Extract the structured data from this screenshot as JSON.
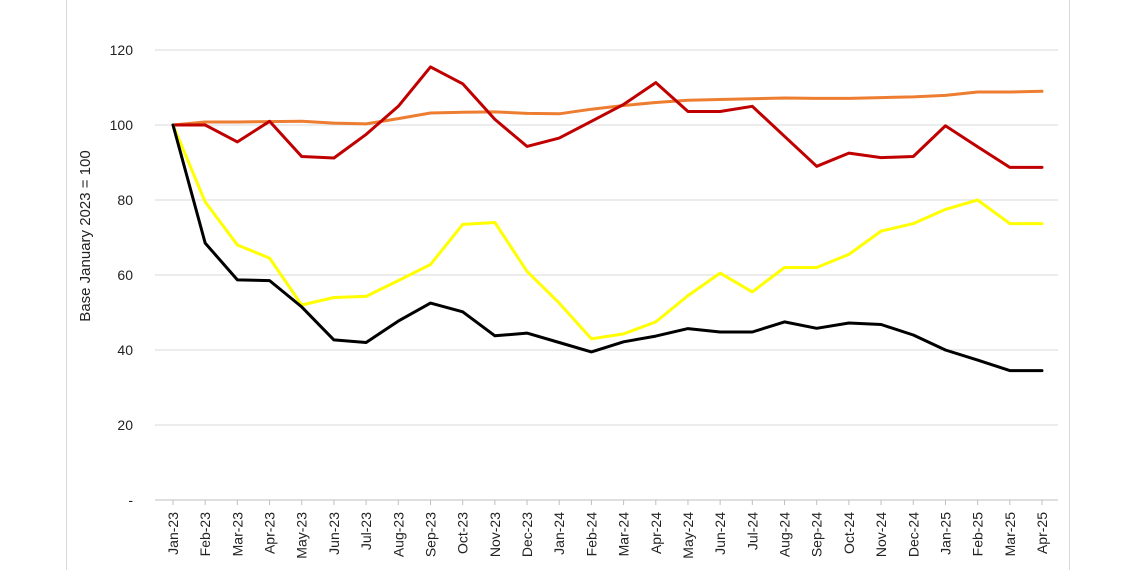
{
  "chart_data": {
    "type": "line",
    "title": "",
    "xlabel": "",
    "ylabel": "Base January 2023 = 100",
    "ylim": [
      0,
      120
    ],
    "yticks": [
      0,
      20,
      40,
      60,
      80,
      100,
      120
    ],
    "ytick_labels": [
      "-",
      "20",
      "40",
      "60",
      "80",
      "100",
      "120"
    ],
    "grid": true,
    "legend": "none",
    "categories": [
      "Jan-23",
      "Feb-23",
      "Mar-23",
      "Apr-23",
      "May-23",
      "Jun-23",
      "Jul-23",
      "Aug-23",
      "Sep-23",
      "Oct-23",
      "Nov-23",
      "Dec-23",
      "Jan-24",
      "Feb-24",
      "Mar-24",
      "Apr-24",
      "May-24",
      "Jun-24",
      "Jul-24",
      "Aug-24",
      "Sep-24",
      "Oct-24",
      "Nov-24",
      "Dec-24",
      "Jan-25",
      "Feb-25",
      "Mar-25",
      "Apr-25"
    ],
    "series": [
      {
        "color": "#ed7d31",
        "values": [
          100,
          100.8,
          100.8,
          100.9,
          101,
          100.5,
          100.3,
          101.7,
          103.2,
          103.4,
          103.5,
          103.1,
          103,
          104.2,
          105.2,
          106,
          106.6,
          106.8,
          107,
          107.2,
          107.1,
          107.1,
          107.3,
          107.5,
          107.9,
          108.8,
          108.8,
          109
        ]
      },
      {
        "color": "#c00000",
        "values": [
          100,
          100,
          95.5,
          101,
          91.6,
          91.2,
          97.5,
          105,
          115.5,
          111,
          101.5,
          94.3,
          96.5,
          101,
          105.5,
          111.3,
          103.6,
          103.6,
          105,
          97,
          89,
          92.5,
          91.3,
          91.6,
          99.8,
          94.2,
          88.7,
          88.7
        ]
      },
      {
        "color": "#ffff00",
        "values": [
          100,
          79.5,
          68,
          64.5,
          52,
          54,
          54.3,
          58.5,
          62.8,
          73.5,
          74,
          61,
          52.5,
          43,
          44.3,
          47.5,
          54.5,
          60.5,
          55.5,
          62,
          62,
          65.5,
          71.7,
          73.7,
          77.5,
          80,
          73.7,
          73.7
        ]
      },
      {
        "color": "#000000",
        "values": [
          100,
          68.5,
          58.7,
          58.5,
          51.5,
          42.7,
          42,
          47.7,
          52.5,
          50.2,
          43.8,
          44.5,
          42,
          39.5,
          42.2,
          43.7,
          45.7,
          44.8,
          44.8,
          47.5,
          45.8,
          47.2,
          46.8,
          44,
          40,
          37.3,
          34.5,
          34.5
        ]
      }
    ]
  }
}
